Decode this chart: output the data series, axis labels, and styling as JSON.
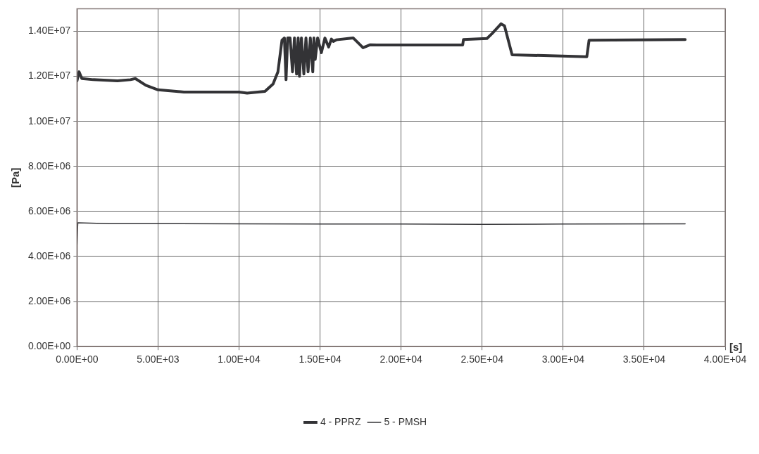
{
  "chart_data": {
    "type": "line",
    "xlabel": "[s]",
    "ylabel": "[Pa]",
    "xlim": [
      0,
      40000
    ],
    "ylim": [
      0,
      15000000
    ],
    "xticks": [
      {
        "value": 0,
        "label": "0.00E+00"
      },
      {
        "value": 5000,
        "label": "5.00E+03"
      },
      {
        "value": 10000,
        "label": "1.00E+04"
      },
      {
        "value": 15000,
        "label": "1.50E+04"
      },
      {
        "value": 20000,
        "label": "2.00E+04"
      },
      {
        "value": 25000,
        "label": "2.50E+04"
      },
      {
        "value": 30000,
        "label": "3.00E+04"
      },
      {
        "value": 35000,
        "label": "3.50E+04"
      },
      {
        "value": 40000,
        "label": "4.00E+04"
      }
    ],
    "yticks": [
      {
        "value": 0,
        "label": "0.00E+00"
      },
      {
        "value": 2000000,
        "label": "2.00E+06"
      },
      {
        "value": 4000000,
        "label": "4.00E+06"
      },
      {
        "value": 6000000,
        "label": "6.00E+06"
      },
      {
        "value": 8000000,
        "label": "8.00E+06"
      },
      {
        "value": 10000000,
        "label": "1.00E+07"
      },
      {
        "value": 12000000,
        "label": "1.20E+07"
      },
      {
        "value": 14000000,
        "label": "1.40E+07"
      }
    ],
    "grid": true,
    "legend": "bottom",
    "marker": "none",
    "series": [
      {
        "name": "4 - PPRZ",
        "color": "#333336",
        "x": [
          0,
          130,
          300,
          1000,
          2500,
          3300,
          3600,
          4250,
          5000,
          6600,
          10000,
          10500,
          11600,
          12100,
          12400,
          12650,
          12800,
          12900,
          13000,
          13150,
          13300,
          13420,
          13550,
          13650,
          13730,
          13850,
          14000,
          14130,
          14260,
          14400,
          14550,
          14620,
          14700,
          14850,
          15080,
          15300,
          15530,
          15700,
          15820,
          16000,
          16750,
          17050,
          17650,
          18100,
          18500,
          23800,
          23850,
          25300,
          25620,
          26170,
          26380,
          26850,
          28800,
          31460,
          31600,
          37530
        ],
        "values": [
          11800000,
          12200000,
          11900000,
          11850000,
          11800000,
          11850000,
          11900000,
          11600000,
          11400000,
          11300000,
          11300000,
          11250000,
          11330000,
          11660000,
          12200000,
          13600000,
          13700000,
          11850000,
          13700000,
          13700000,
          12200000,
          13700000,
          12100000,
          13700000,
          12000000,
          13700000,
          12100000,
          13700000,
          12200000,
          13700000,
          12200000,
          13700000,
          12750000,
          13700000,
          13050000,
          13700000,
          13300000,
          13650000,
          13550000,
          13620000,
          13680000,
          13700000,
          13270000,
          13400000,
          13390000,
          13390000,
          13630000,
          13680000,
          13900000,
          14330000,
          14240000,
          12950000,
          12920000,
          12870000,
          13600000,
          13630000
        ]
      },
      {
        "name": "5 - PMSH",
        "color": "#333336",
        "x": [
          0,
          50,
          2000,
          10000,
          15000,
          20000,
          25000,
          30000,
          37530
        ],
        "values": [
          4520000,
          5500000,
          5460000,
          5450000,
          5440000,
          5440000,
          5430000,
          5440000,
          5450000
        ]
      }
    ]
  }
}
